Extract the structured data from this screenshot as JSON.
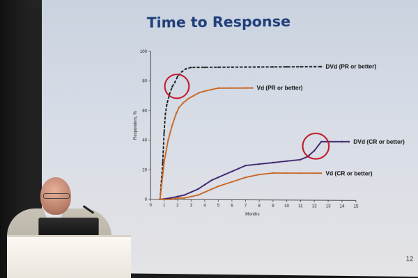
{
  "slide": {
    "title": "Time to Response",
    "number": "12"
  },
  "chart_data": {
    "type": "line",
    "title": "Time to Response",
    "xlabel": "Months",
    "ylabel": "Responders, %",
    "xlim": [
      0,
      15
    ],
    "ylim": [
      0,
      100
    ],
    "x_ticks": [
      "0",
      "1",
      "2",
      "3",
      "4",
      "5",
      "6",
      "7",
      "8",
      "9",
      "10",
      "11",
      "12",
      "13",
      "14",
      "15"
    ],
    "y_ticks": [
      "0",
      "20",
      "40",
      "60",
      "80",
      "100"
    ],
    "grid": false,
    "series": [
      {
        "name": "DVd (PR or better)",
        "color": "#1a1a1a",
        "dash": true,
        "x": [
          0.7,
          0.9,
          1.0,
          1.1,
          1.2,
          1.4,
          1.6,
          1.8,
          2.0,
          2.3,
          2.6,
          3.0,
          3.5,
          4.0,
          5.0,
          6.0,
          7.0,
          8.0,
          9.0,
          10.0,
          11.0,
          12.0,
          12.5
        ],
        "y": [
          0,
          25,
          45,
          58,
          64,
          71,
          76,
          79,
          83,
          86,
          88,
          89,
          89,
          89,
          89,
          89,
          89,
          89,
          89,
          89,
          89,
          89,
          89
        ]
      },
      {
        "name": "Vd (PR or better)",
        "color": "#c8641e",
        "dash": false,
        "x": [
          0.7,
          1.0,
          1.3,
          1.6,
          1.9,
          2.1,
          2.4,
          2.8,
          3.2,
          3.6,
          4.0,
          4.5,
          5.0,
          6.0,
          7.0,
          7.5
        ],
        "y": [
          0,
          25,
          40,
          50,
          58,
          62,
          65,
          68,
          70,
          72,
          73,
          74,
          75,
          75,
          75,
          75
        ]
      },
      {
        "name": "DVd (CR or better)",
        "color": "#3a1f6a",
        "dash": false,
        "x": [
          0.7,
          1.5,
          2.0,
          2.5,
          3.0,
          3.5,
          4.0,
          4.5,
          5.0,
          5.5,
          6.0,
          6.5,
          7.0,
          8.0,
          9.0,
          10.0,
          11.0,
          11.5,
          12.0,
          12.5,
          13.0,
          14.0,
          14.5
        ],
        "y": [
          0,
          1,
          2,
          3,
          5,
          7,
          10,
          13,
          15,
          17,
          19,
          21,
          23,
          24,
          25,
          26,
          27,
          29,
          33,
          39,
          39,
          39,
          39
        ]
      },
      {
        "name": "Vd (CR or better)",
        "color": "#c8641e",
        "dash": false,
        "x": [
          0.7,
          1.5,
          2.0,
          2.5,
          3.0,
          3.5,
          4.0,
          4.5,
          5.0,
          6.0,
          7.0,
          8.0,
          9.0,
          10.0,
          11.0,
          12.0,
          12.5
        ],
        "y": [
          0,
          0,
          1,
          1,
          2,
          3,
          5,
          7,
          9,
          12,
          15,
          17,
          18,
          18,
          18,
          18,
          18
        ]
      }
    ]
  }
}
